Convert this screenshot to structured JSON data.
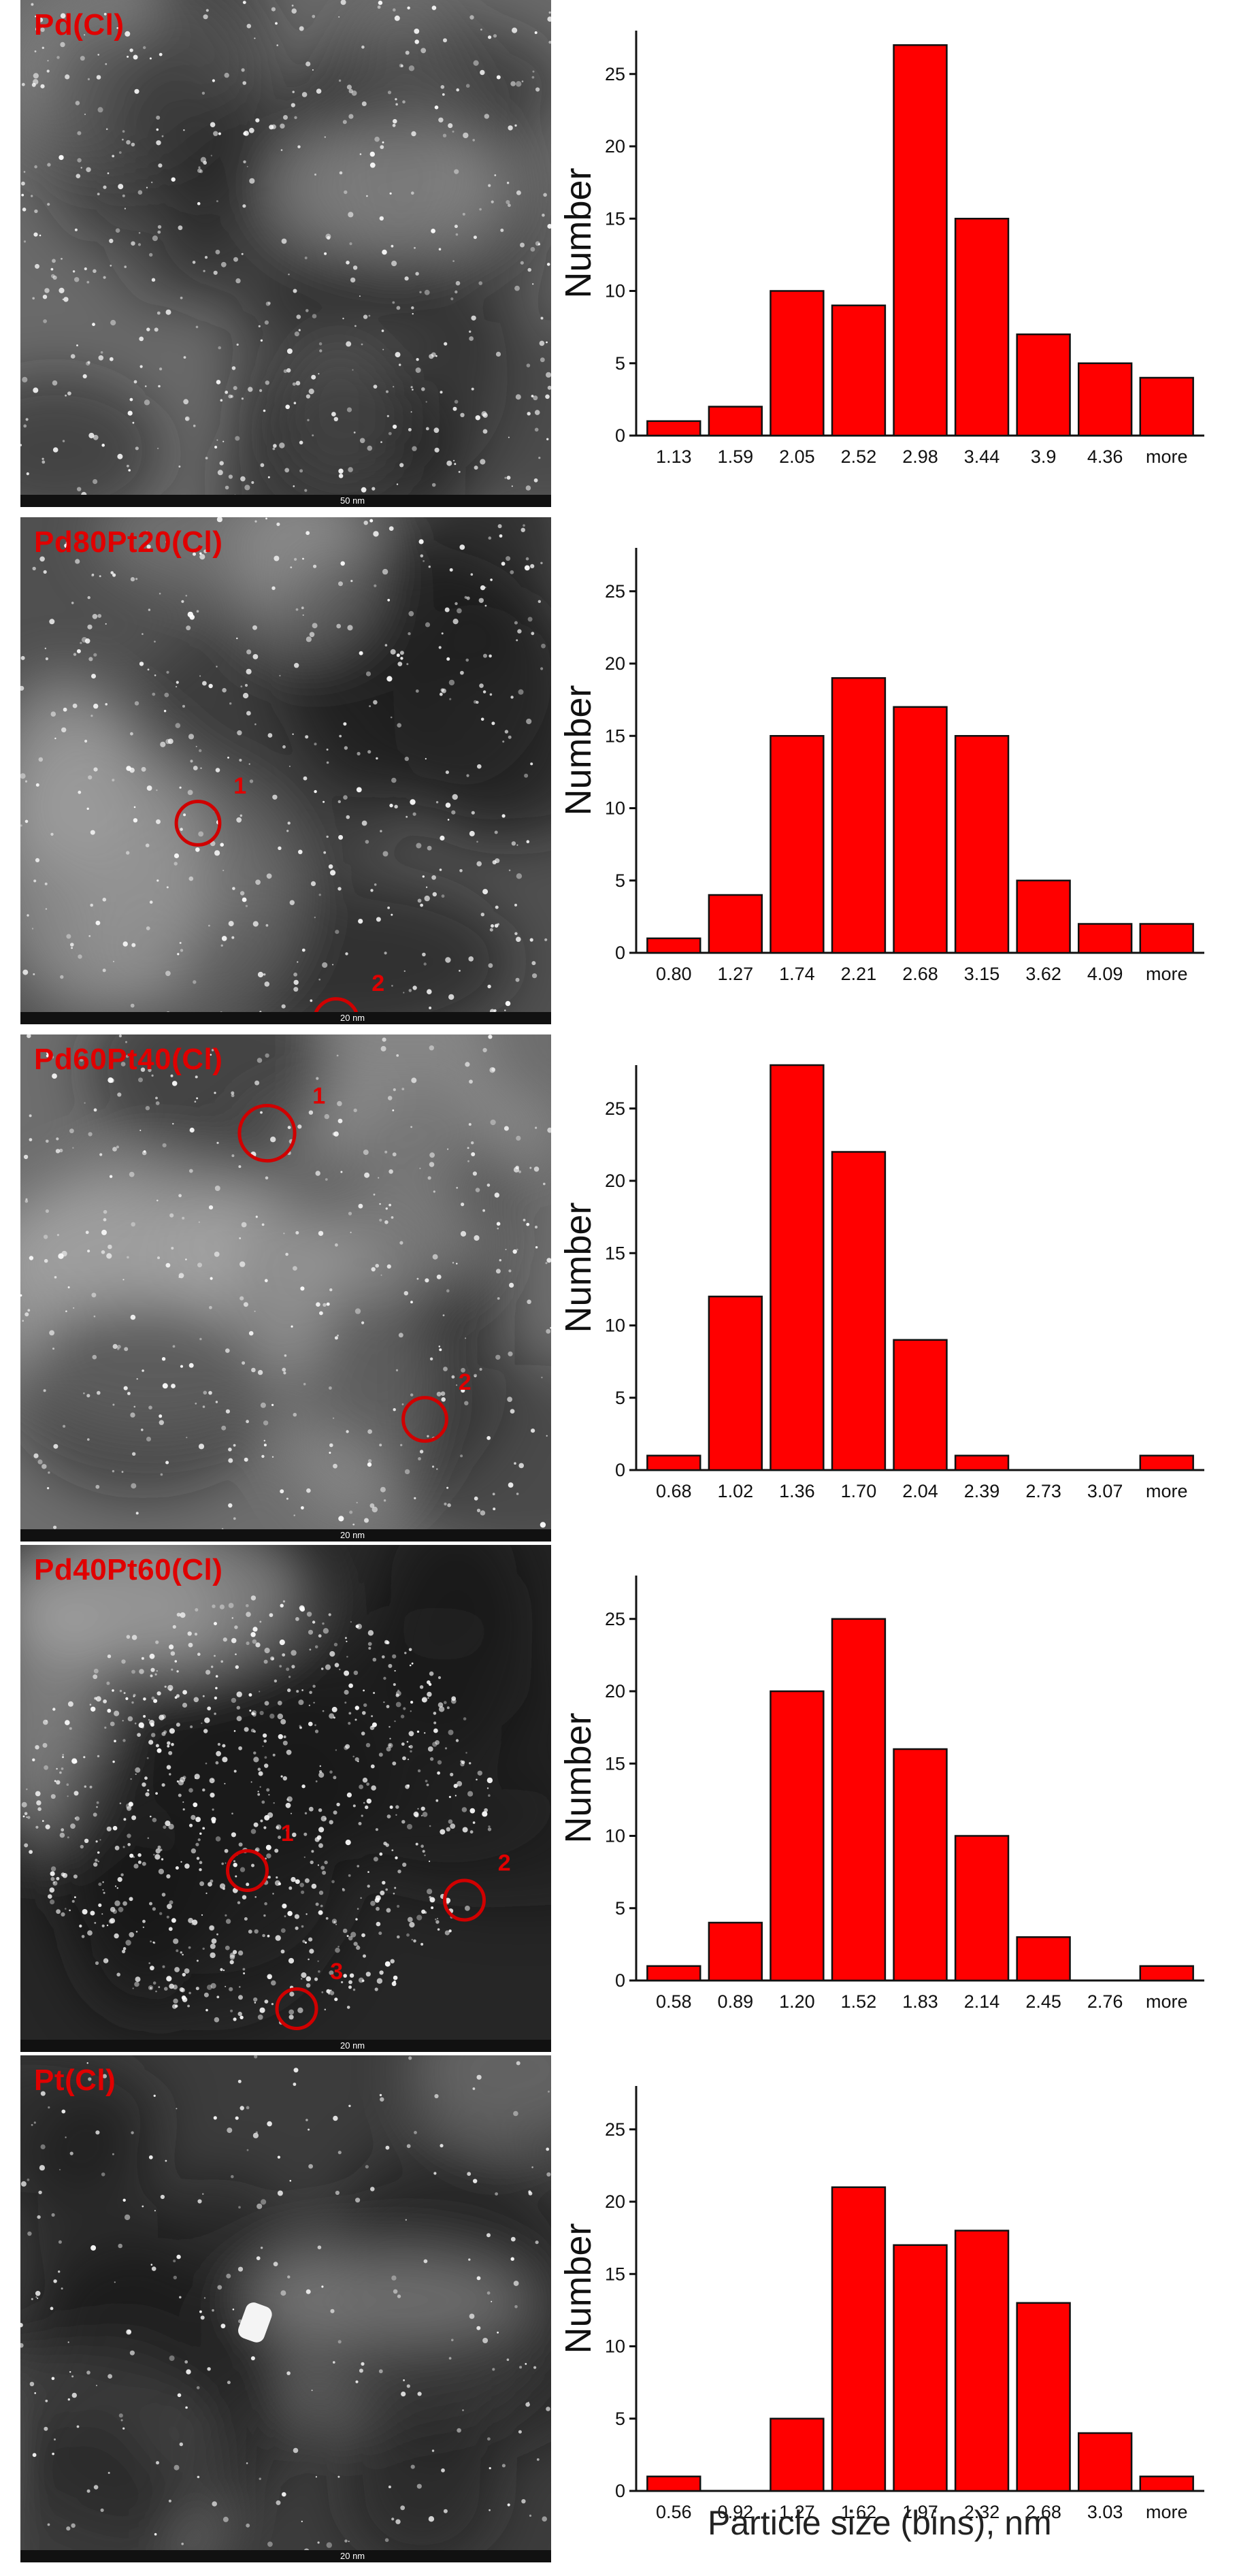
{
  "panels": [
    {
      "sample": "Pd(Cl)",
      "scale": "50 nm",
      "markers": [],
      "chart": {
        "type": "bar",
        "categories": [
          "1.13",
          "1.59",
          "2.05",
          "2.52",
          "2.98",
          "3.44",
          "3.9",
          "4.36",
          "more"
        ],
        "values": [
          1,
          2,
          10,
          9,
          27,
          15,
          7,
          5,
          4
        ],
        "ylabel": "Number",
        "ylim": [
          0,
          28
        ],
        "yticks": [
          0,
          5,
          10,
          15,
          20,
          25
        ]
      }
    },
    {
      "sample": "Pd80Pt20(Cl)",
      "scale": "20 nm",
      "markers": [
        "1",
        "2"
      ],
      "chart": {
        "type": "bar",
        "categories": [
          "0.80",
          "1.27",
          "1.74",
          "2.21",
          "2.68",
          "3.15",
          "3.62",
          "4.09",
          "more"
        ],
        "values": [
          1,
          4,
          15,
          19,
          17,
          15,
          5,
          2,
          2
        ],
        "ylabel": "Number",
        "ylim": [
          0,
          28
        ],
        "yticks": [
          0,
          5,
          10,
          15,
          20,
          25
        ]
      }
    },
    {
      "sample": "Pd60Pt40(Cl)",
      "scale": "20 nm",
      "markers": [
        "1",
        "2"
      ],
      "chart": {
        "type": "bar",
        "categories": [
          "0.68",
          "1.02",
          "1.36",
          "1.70",
          "2.04",
          "2.39",
          "2.73",
          "3.07",
          "more"
        ],
        "values": [
          1,
          12,
          29,
          22,
          9,
          1,
          0,
          0,
          1
        ],
        "ylabel": "Number",
        "ylim": [
          0,
          28
        ],
        "yticks": [
          0,
          5,
          10,
          15,
          20,
          25
        ]
      }
    },
    {
      "sample": "Pd40Pt60(Cl)",
      "scale": "20 nm",
      "markers": [
        "1",
        "2",
        "3"
      ],
      "chart": {
        "type": "bar",
        "categories": [
          "0.58",
          "0.89",
          "1.20",
          "1.52",
          "1.83",
          "2.14",
          "2.45",
          "2.76",
          "more"
        ],
        "values": [
          1,
          4,
          20,
          25,
          16,
          10,
          3,
          0,
          1
        ],
        "ylabel": "Number",
        "ylim": [
          0,
          28
        ],
        "yticks": [
          0,
          5,
          10,
          15,
          20,
          25
        ]
      }
    },
    {
      "sample": "Pt(Cl)",
      "scale": "20 nm",
      "markers": [],
      "chart": {
        "type": "bar",
        "categories": [
          "0.56",
          "0.92",
          "1.27",
          "1.62",
          "1.97",
          "2.32",
          "2.68",
          "3.03",
          "more"
        ],
        "values": [
          1,
          0,
          5,
          21,
          17,
          18,
          13,
          4,
          1
        ],
        "ylabel": "Number",
        "ylim": [
          0,
          28
        ],
        "yticks": [
          0,
          5,
          10,
          15,
          20,
          25
        ]
      }
    }
  ],
  "chart_data": [
    {
      "type": "bar",
      "categories": [
        "1.13",
        "1.59",
        "2.05",
        "2.52",
        "2.98",
        "3.44",
        "3.9",
        "4.36",
        "more"
      ],
      "values": [
        1,
        2,
        10,
        9,
        27,
        15,
        7,
        5,
        4
      ],
      "ylabel": "Number",
      "ylim": [
        0,
        28
      ]
    },
    {
      "type": "bar",
      "categories": [
        "0.80",
        "1.27",
        "1.74",
        "2.21",
        "2.68",
        "3.15",
        "3.62",
        "4.09",
        "more"
      ],
      "values": [
        1,
        4,
        15,
        19,
        17,
        15,
        5,
        2,
        2
      ],
      "ylabel": "Number",
      "ylim": [
        0,
        28
      ]
    },
    {
      "type": "bar",
      "categories": [
        "0.68",
        "1.02",
        "1.36",
        "1.70",
        "2.04",
        "2.39",
        "2.73",
        "3.07",
        "more"
      ],
      "values": [
        1,
        12,
        29,
        22,
        9,
        1,
        0,
        0,
        1
      ],
      "ylabel": "Number",
      "ylim": [
        0,
        28
      ]
    },
    {
      "type": "bar",
      "categories": [
        "0.58",
        "0.89",
        "1.20",
        "1.52",
        "1.83",
        "2.14",
        "2.45",
        "2.76",
        "more"
      ],
      "values": [
        1,
        4,
        20,
        25,
        16,
        10,
        3,
        0,
        1
      ],
      "ylabel": "Number",
      "ylim": [
        0,
        28
      ]
    },
    {
      "type": "bar",
      "categories": [
        "0.56",
        "0.92",
        "1.27",
        "1.62",
        "1.97",
        "2.32",
        "2.68",
        "3.03",
        "more"
      ],
      "values": [
        1,
        0,
        5,
        21,
        17,
        18,
        13,
        4,
        1
      ],
      "ylabel": "Number",
      "ylim": [
        0,
        28
      ],
      "xlabel": "Particle size (bins), nm"
    }
  ],
  "xlabel": "Particle size (bins), nm",
  "colors": {
    "bar": "#ff0000",
    "label": "#e00000"
  }
}
